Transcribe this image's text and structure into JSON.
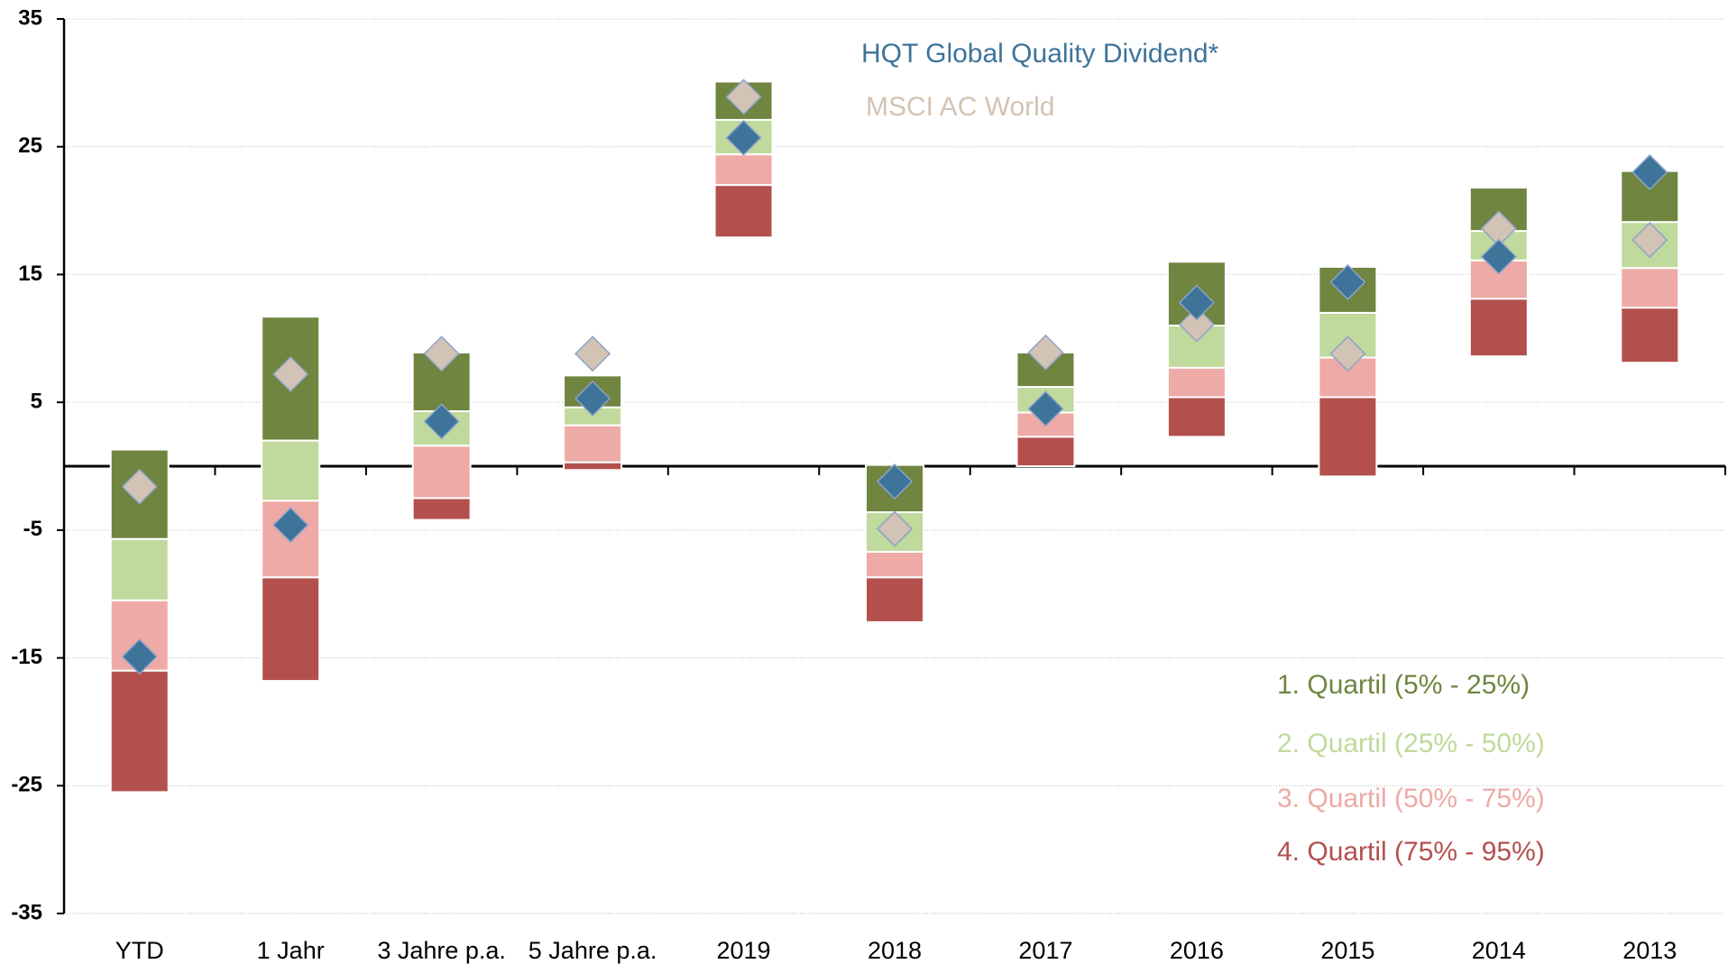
{
  "chart_data": {
    "type": "floating-bar",
    "categories": [
      "YTD",
      "1 Jahr",
      "3 Jahre p.a.",
      "5 Jahre p.a.",
      "2019",
      "2018",
      "2017",
      "2016",
      "2015",
      "2014",
      "2013"
    ],
    "series": [
      {
        "name": "1. Quartil (5% - 25%)",
        "color": "#6f8540",
        "values": [
          [
            -5.7,
            1.3
          ],
          [
            2.0,
            11.7
          ],
          [
            4.3,
            8.9
          ],
          [
            4.6,
            7.1
          ],
          [
            27.1,
            30.1
          ],
          [
            -3.6,
            0.1
          ],
          [
            6.2,
            8.9
          ],
          [
            11.0,
            16.0
          ],
          [
            12.0,
            15.6
          ],
          [
            18.4,
            21.8
          ],
          [
            19.1,
            23.1
          ]
        ]
      },
      {
        "name": "2. Quartil (25% - 50%)",
        "color": "#c0d99c",
        "values": [
          [
            -10.5,
            -5.7
          ],
          [
            -2.7,
            2.0
          ],
          [
            1.6,
            4.3
          ],
          [
            3.2,
            4.6
          ],
          [
            24.4,
            27.1
          ],
          [
            -6.7,
            -3.6
          ],
          [
            4.2,
            6.2
          ],
          [
            7.7,
            11.0
          ],
          [
            8.5,
            12.0
          ],
          [
            16.1,
            18.4
          ],
          [
            15.5,
            19.1
          ]
        ]
      },
      {
        "name": "3. Quartil (50% - 75%)",
        "color": "#eeaaa6",
        "values": [
          [
            -16.0,
            -10.5
          ],
          [
            -8.7,
            -2.7
          ],
          [
            -2.5,
            1.6
          ],
          [
            0.3,
            3.2
          ],
          [
            22.0,
            24.4
          ],
          [
            -8.7,
            -6.7
          ],
          [
            2.3,
            4.2
          ],
          [
            5.4,
            7.7
          ],
          [
            5.4,
            8.5
          ],
          [
            13.1,
            16.1
          ],
          [
            12.4,
            15.5
          ]
        ]
      },
      {
        "name": "4. Quartil (75% - 95%)",
        "color": "#b3504d",
        "values": [
          [
            -25.5,
            -16.0
          ],
          [
            -16.8,
            -8.7
          ],
          [
            -4.2,
            -2.5
          ],
          [
            -0.3,
            0.3
          ],
          [
            17.9,
            22.0
          ],
          [
            -12.2,
            -8.7
          ],
          [
            0.0,
            2.3
          ],
          [
            2.3,
            5.4
          ],
          [
            -0.8,
            5.4
          ],
          [
            8.6,
            13.1
          ],
          [
            8.1,
            12.4
          ]
        ]
      }
    ],
    "points": [
      {
        "name": "MSCI AC World",
        "color": "#d3c3b4",
        "values": [
          -1.6,
          7.2,
          8.8,
          8.8,
          28.9,
          -4.9,
          8.9,
          11.1,
          8.8,
          18.6,
          17.7
        ]
      },
      {
        "name": "HQT Global Quality Dividend*",
        "color": "#3e7499",
        "values": [
          -14.9,
          -4.6,
          3.5,
          5.3,
          25.7,
          -1.2,
          4.5,
          12.8,
          14.4,
          16.4,
          23.0
        ]
      }
    ],
    "ylim": [
      -35,
      35
    ],
    "yticks": [
      35,
      25,
      15,
      5,
      -5,
      -15,
      -25,
      -35
    ],
    "grid": true
  }
}
